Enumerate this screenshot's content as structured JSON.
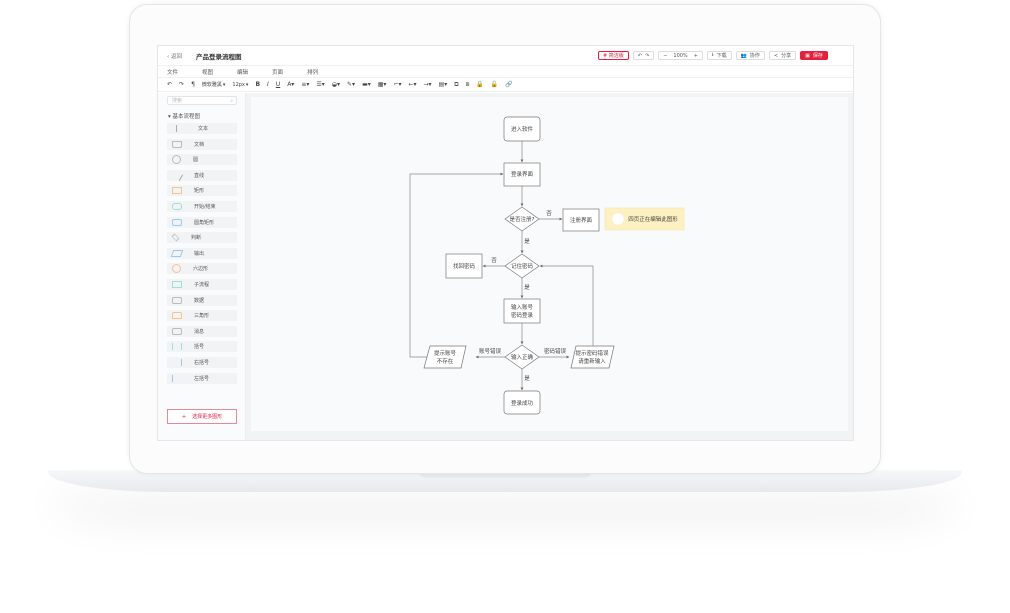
{
  "header": {
    "back": "返回",
    "title": "产品登录流程图",
    "tag": "# 简洁版",
    "zoom": "100%",
    "download": "下载",
    "collab": "协作",
    "share": "分享",
    "save": "保存"
  },
  "menu": [
    "文件",
    "视图",
    "编辑",
    "页面",
    "排列"
  ],
  "toolbar": {
    "font": "微软雅黑",
    "size": "12px"
  },
  "sidebar": {
    "search_placeholder": "搜索",
    "section": "基本流程图",
    "items": [
      "文本",
      "文档",
      "圆",
      "直线",
      "矩形",
      "开始/结束",
      "圆角矩形",
      "判断",
      "输出",
      "六边形",
      "子流程",
      "数据",
      "三角形",
      "消息",
      "括号",
      "右括号",
      "左括号"
    ],
    "more": "选择更多图形"
  },
  "flow": {
    "start": "进入软件",
    "login": "登录界面",
    "registered": "是否注册?",
    "register": "注册界面",
    "note": "四页正在编辑此图形",
    "remember": "记住密码",
    "recover": "找回密码",
    "input1": "输入账号",
    "input2": "密码登录",
    "correct": "输入正确",
    "noacc1": "提示账号",
    "noacc2": "不存在",
    "wrongpw1": "提示密码错误",
    "wrongpw2": "请重新输入",
    "success": "登录成功",
    "no": "否",
    "yes": "是",
    "acc_err": "账号错误",
    "pw_err": "密码错误"
  },
  "colors": {
    "accent": "#e5203a",
    "note": "#fdf1c2"
  }
}
